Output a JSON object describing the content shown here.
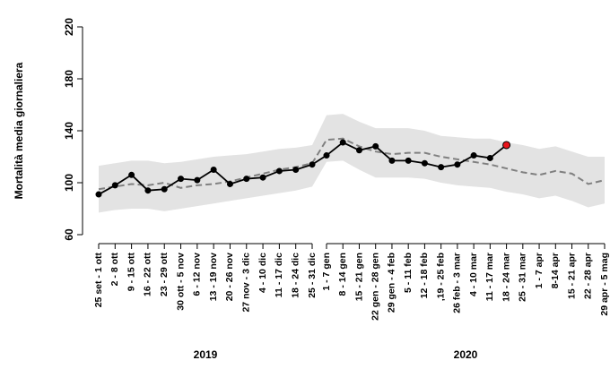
{
  "chart_data": {
    "type": "line",
    "y_label": "Mortalità media giornaliera",
    "ylim": [
      60,
      220
    ],
    "yticks": [
      60,
      100,
      140,
      180,
      220
    ],
    "groups": [
      {
        "label": "2019",
        "categories": [
          "25 set - 1 ott",
          "2 - 8 ott",
          "9 - 15 ott",
          "16 - 22 ott",
          "23 - 29 ott",
          "30 ott - 5 nov",
          "6 - 12 nov",
          "13 - 19 nov",
          "20 - 26 nov",
          "27 nov - 3 dic",
          "4 - 10 dic",
          "11 - 17 dic",
          "18 - 24 dic",
          "25 - 31 dic"
        ]
      },
      {
        "label": "2020",
        "categories": [
          "1 - 7 gen",
          "8 - 14 gen",
          "15 - 21 gen",
          "22 gen - 28 gen",
          "29 gen - 4 feb",
          "5 - 11 feb",
          "12 - 18 feb",
          ",19 - 25 feb",
          "26 feb - 3 mar",
          "4 - 10 mar",
          "11 - 17 mar",
          "18 - 24 mar",
          "25 - 31 mar",
          "1 - 7 apr",
          "8-14 apr",
          "15 - 21 apr",
          "22 - 28 apr",
          "29 apr - 5 mag"
        ]
      }
    ],
    "band": {
      "color": "#e3e3e3",
      "upper": [
        113,
        115,
        117,
        117,
        115,
        116,
        118,
        120,
        121,
        122,
        124,
        126,
        127,
        129,
        152,
        153,
        147,
        142,
        142,
        142,
        140,
        136,
        135,
        134,
        134,
        131,
        129,
        126,
        128,
        124,
        120,
        120
      ],
      "lower": [
        77,
        79,
        80,
        80,
        78,
        80,
        82,
        84,
        86,
        88,
        90,
        92,
        94,
        97,
        116,
        117,
        110,
        104,
        104,
        104,
        103,
        100,
        98,
        97,
        96,
        93,
        91,
        88,
        90,
        86,
        81,
        84
      ]
    },
    "series": [
      {
        "color": "#808080",
        "dashed": true,
        "values": [
          95,
          97,
          99,
          98,
          100,
          96,
          98,
          99,
          101,
          104,
          107,
          110,
          112,
          115,
          133,
          134,
          128,
          124,
          122,
          123,
          123,
          120,
          118,
          116,
          114,
          111,
          108,
          106,
          109,
          107,
          99,
          102
        ]
      },
      {
        "color": "#000000",
        "markers": true,
        "last_point_color": "#e8141b",
        "values": [
          91,
          98,
          106,
          94,
          95,
          103,
          102,
          110,
          99,
          103,
          104,
          109,
          110,
          114,
          121,
          131,
          125,
          128,
          117,
          117,
          115,
          112,
          114,
          121,
          119,
          129,
          null,
          null,
          null,
          null,
          null,
          null
        ]
      }
    ]
  }
}
